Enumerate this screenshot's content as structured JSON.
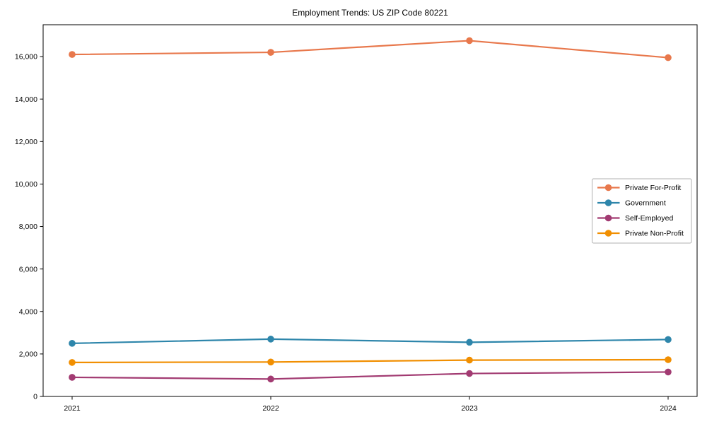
{
  "chart_data": {
    "type": "line",
    "title": "Employment Trends: US ZIP Code 80221",
    "xlabel": "",
    "ylabel": "",
    "categories": [
      "2021",
      "2022",
      "2023",
      "2024"
    ],
    "series": [
      {
        "name": "Private For-Profit",
        "color": "#E8784C",
        "values": [
          16100,
          16200,
          16750,
          15950
        ]
      },
      {
        "name": "Government",
        "color": "#2E86AB",
        "values": [
          2500,
          2700,
          2550,
          2680
        ]
      },
      {
        "name": "Self-Employed",
        "color": "#A23B72",
        "values": [
          900,
          820,
          1080,
          1150
        ]
      },
      {
        "name": "Private Non-Profit",
        "color": "#F18F01",
        "values": [
          1600,
          1620,
          1710,
          1730
        ]
      }
    ],
    "ylim": [
      0,
      17500
    ],
    "yticks": [
      0,
      2000,
      4000,
      6000,
      8000,
      10000,
      12000,
      14000,
      16000
    ],
    "grid": false,
    "legend_position": "center right",
    "marker": "circle",
    "background_color": "#ffffff",
    "spine_color": "#000000",
    "legend_border_color": "#b0b0b0"
  }
}
